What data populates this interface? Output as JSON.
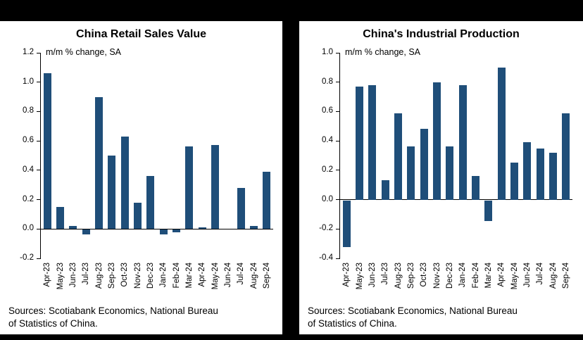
{
  "frame": {
    "background": "#000000",
    "panel_background": "#ffffff"
  },
  "style": {
    "bar_color": "#1f4e79",
    "axis_color": "#000000"
  },
  "chart_data": [
    {
      "type": "bar",
      "title": "China Retail Sales Value",
      "ylabel": "m/m % change, SA",
      "categories": [
        "Apr-23",
        "May-23",
        "Jun-23",
        "Jul-23",
        "Aug-23",
        "Sep-23",
        "Oct-23",
        "Nov-23",
        "Dec-23",
        "Jan-24",
        "Feb-24",
        "Mar-24",
        "Apr-24",
        "May-24",
        "Jun-24",
        "Jul-24",
        "Aug-24",
        "Sep-24"
      ],
      "values": [
        1.06,
        0.15,
        0.02,
        -0.03,
        0.9,
        0.5,
        0.63,
        0.18,
        0.36,
        -0.03,
        -0.02,
        0.56,
        0.01,
        0.57,
        0.0,
        0.28,
        0.02,
        0.39
      ],
      "ylim": [
        -0.2,
        1.2
      ],
      "tick_step": 0.2,
      "grid": false,
      "legend": "none",
      "sources": "Sources: Scotiabank Economics, National Bureau\nof Statistics of China."
    },
    {
      "type": "bar",
      "title": "China's Industrial Production",
      "ylabel": "m/m % change, SA",
      "categories": [
        "Apr-23",
        "May-23",
        "Jun-23",
        "Jul-23",
        "Aug-23",
        "Sep-23",
        "Oct-23",
        "Nov-23",
        "Dec-23",
        "Jan-24",
        "Feb-24",
        "Mar-24",
        "Apr-24",
        "May-24",
        "Jun-24",
        "Jul-24",
        "Aug-24",
        "Sep-24"
      ],
      "values": [
        -0.32,
        0.77,
        0.78,
        0.13,
        0.59,
        0.36,
        0.48,
        0.8,
        0.36,
        0.78,
        0.16,
        -0.14,
        0.9,
        0.25,
        0.39,
        0.35,
        0.32,
        0.59
      ],
      "ylim": [
        -0.4,
        1.0
      ],
      "tick_step": 0.2,
      "grid": false,
      "legend": "none",
      "sources": "Sources: Scotiabank Economics, National Bureau\nof Statistics of China."
    }
  ]
}
